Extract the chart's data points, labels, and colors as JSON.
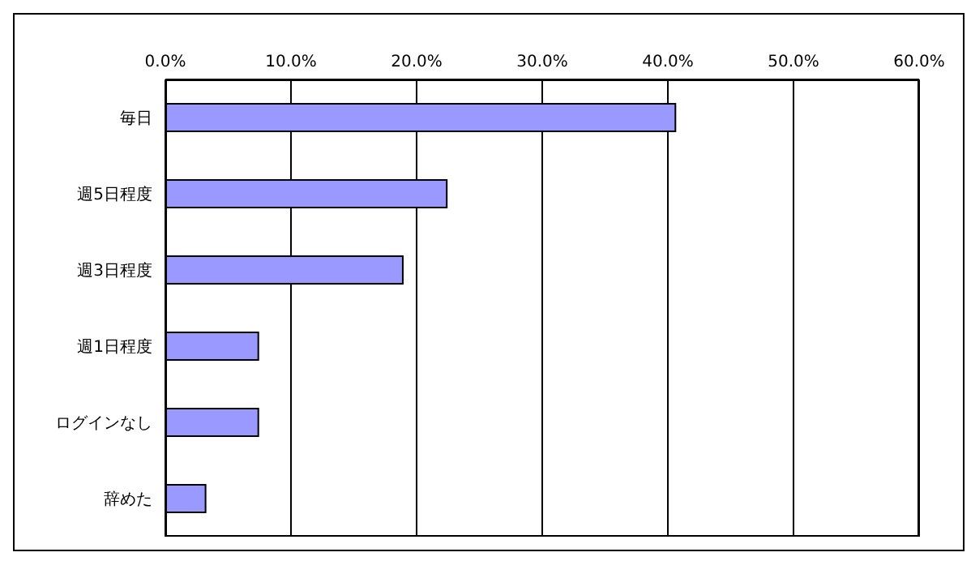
{
  "chart_data": {
    "type": "bar",
    "orientation": "horizontal",
    "categories": [
      "毎日",
      "週5日程度",
      "週3日程度",
      "週1日程度",
      "ログインなし",
      "辞めた"
    ],
    "values": [
      40.6,
      22.4,
      18.9,
      7.4,
      7.4,
      3.2
    ],
    "color": "#9999ff",
    "xlim": [
      0,
      60
    ],
    "xticks": [
      {
        "value": 0,
        "label": "0.0%"
      },
      {
        "value": 10,
        "label": "10.0%"
      },
      {
        "value": 20,
        "label": "20.0%"
      },
      {
        "value": 30,
        "label": "30.0%"
      },
      {
        "value": 40,
        "label": "40.0%"
      },
      {
        "value": 50,
        "label": "50.0%"
      },
      {
        "value": 60,
        "label": "60.0%"
      }
    ],
    "grid": "x"
  }
}
